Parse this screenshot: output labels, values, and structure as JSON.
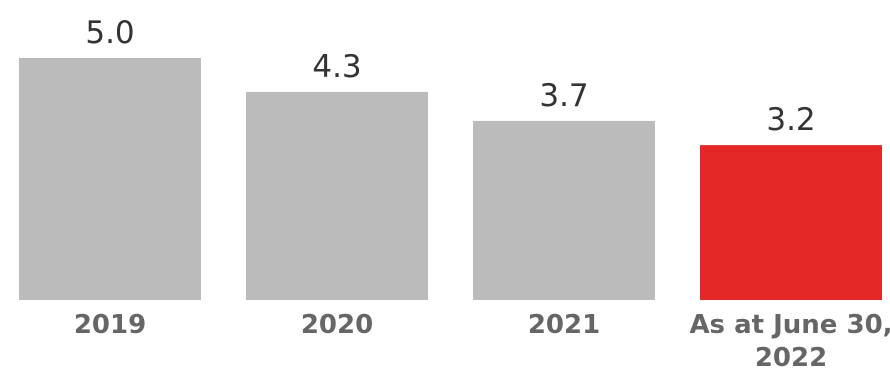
{
  "chart_data": {
    "type": "bar",
    "categories": [
      "2019",
      "2020",
      "2021",
      "As at June 30, 2022"
    ],
    "values": [
      5.0,
      4.3,
      3.7,
      3.2
    ],
    "value_labels": [
      "5.0",
      "4.3",
      "3.7",
      "3.2"
    ],
    "title": "",
    "xlabel": "",
    "ylabel": "",
    "ylim": [
      0,
      5.0
    ],
    "grid": false,
    "legend": "none",
    "colors": [
      "#bbbbbb",
      "#bbbbbb",
      "#bbbbbb",
      "#e32726"
    ]
  }
}
